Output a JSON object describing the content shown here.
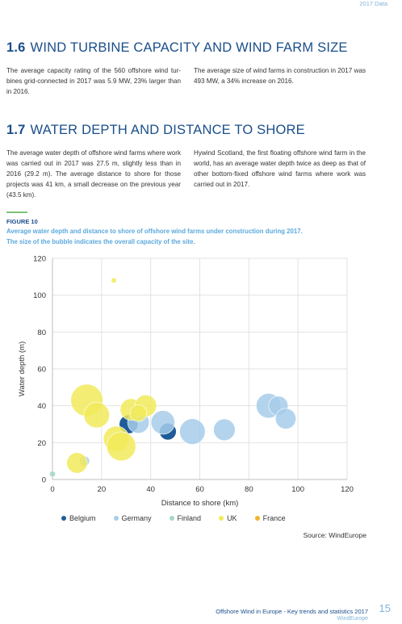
{
  "header": {
    "top_label": "2017 Data"
  },
  "section16": {
    "number": "1.6",
    "title": "WIND TURBINE CAPACITY AND WIND FARM SIZE",
    "left_text": "The average capacity rating of the 560 offshore wind tur-bines grid-connected in 2017 was 5.9 MW, 23% larger than in 2016.",
    "right_text": "The average size of wind farms in construction in 2017 was 493 MW, a 34% increase on 2016."
  },
  "section17": {
    "number": "1.7",
    "title": "WATER DEPTH AND DISTANCE TO SHORE",
    "left_text": "The average water depth of offshore wind farms where work was carried out in 2017 was 27.5 m, slightly less than in 2016 (29.2 m). The average distance to shore for those projects was 41 km, a small decrease on the previous year (43.5 km).",
    "right_text": "Hywind Scotland, the first floating offshore wind farm in the world, has an average water depth twice as deep as that of other bottom-fixed offshore wind farms where work was carried out in 2017."
  },
  "figure": {
    "label": "FIGURE 10",
    "caption_line1": "Average water depth and distance to shore of offshore wind farms under construction during 2017.",
    "caption_line2": "The size of the bubble indicates the overall capacity of the site.",
    "source": "Source: WindEurope"
  },
  "chart_data": {
    "type": "scatter",
    "xlabel": "Distance to shore (km)",
    "ylabel": "Water depth (m)",
    "xlim": [
      0,
      120
    ],
    "ylim": [
      0,
      120
    ],
    "xticks": [
      0,
      20,
      40,
      60,
      80,
      100,
      120
    ],
    "yticks": [
      0,
      20,
      40,
      60,
      80,
      100,
      120
    ],
    "grid": true,
    "legend_position": "bottom",
    "series": [
      {
        "name": "Belgium",
        "color": "#1f5c99",
        "points": [
          {
            "x": 31,
            "y": 30,
            "size": 370
          },
          {
            "x": 47,
            "y": 26,
            "size": 300
          }
        ]
      },
      {
        "name": "Germany",
        "color": "#a7cdea",
        "points": [
          {
            "x": 13,
            "y": 10,
            "size": 110
          },
          {
            "x": 35,
            "y": 31,
            "size": 500
          },
          {
            "x": 45,
            "y": 31,
            "size": 600
          },
          {
            "x": 57,
            "y": 26,
            "size": 700
          },
          {
            "x": 70,
            "y": 27,
            "size": 500
          },
          {
            "x": 88,
            "y": 40,
            "size": 650
          },
          {
            "x": 92,
            "y": 40,
            "size": 400
          },
          {
            "x": 95,
            "y": 33,
            "size": 450
          }
        ]
      },
      {
        "name": "Finland",
        "color": "#a6d7c9",
        "points": [
          {
            "x": 0,
            "y": 3,
            "size": 40
          }
        ]
      },
      {
        "name": "UK",
        "color": "#f1ea5a",
        "points": [
          {
            "x": 25,
            "y": 108,
            "size": 30
          },
          {
            "x": 14,
            "y": 43,
            "size": 1100
          },
          {
            "x": 18,
            "y": 35,
            "size": 700
          },
          {
            "x": 10,
            "y": 9,
            "size": 450
          },
          {
            "x": 26,
            "y": 22,
            "size": 700
          },
          {
            "x": 28,
            "y": 18,
            "size": 900
          },
          {
            "x": 32,
            "y": 38,
            "size": 500
          },
          {
            "x": 38,
            "y": 40,
            "size": 500
          },
          {
            "x": 35,
            "y": 36,
            "size": 300
          }
        ]
      },
      {
        "name": "France",
        "color": "#f3b429",
        "points": []
      }
    ]
  }
}
